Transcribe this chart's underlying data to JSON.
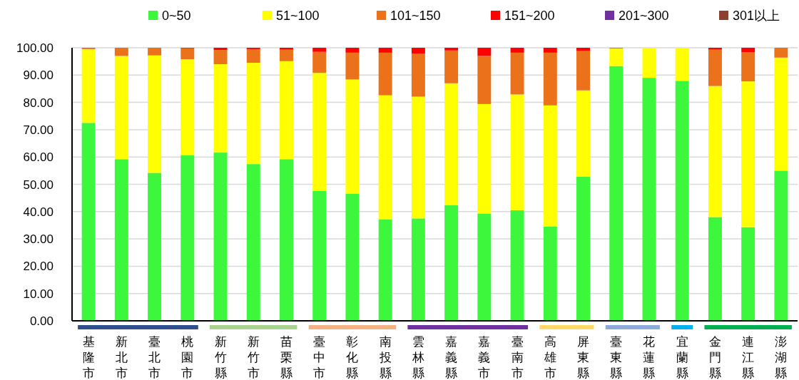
{
  "chart_data": {
    "type": "bar",
    "stacked": true,
    "categories": [
      "基隆市",
      "新北市",
      "臺北市",
      "桃園市",
      "新竹縣",
      "新竹市",
      "苗栗縣",
      "臺中市",
      "彰化縣",
      "南投縣",
      "雲林縣",
      "嘉義縣",
      "嘉義市",
      "臺南市",
      "高雄市",
      "屏東縣",
      "臺東縣",
      "花蓮縣",
      "宜蘭縣",
      "金門縣",
      "連江縣",
      "澎湖縣"
    ],
    "series": [
      {
        "name": "0~50",
        "color": "#3df73d",
        "values": [
          72.5,
          59.2,
          54.2,
          60.7,
          61.6,
          57.4,
          59.2,
          47.6,
          46.6,
          37.2,
          37.5,
          42.4,
          39.3,
          40.5,
          34.5,
          52.8,
          93.3,
          89.0,
          87.9,
          38.0,
          34.3,
          55.0
        ]
      },
      {
        "name": "51~100",
        "color": "#ffff00",
        "values": [
          27.0,
          37.8,
          43.0,
          35.1,
          32.4,
          37.1,
          35.9,
          43.2,
          41.8,
          45.4,
          44.6,
          44.6,
          40.1,
          42.4,
          44.4,
          31.6,
          6.4,
          11.0,
          12.1,
          48.0,
          53.4,
          41.4
        ]
      },
      {
        "name": "101~150",
        "color": "#eb711b",
        "values": [
          0.5,
          3.0,
          2.8,
          4.0,
          5.2,
          5.0,
          4.2,
          7.7,
          9.8,
          15.6,
          15.7,
          12.0,
          17.6,
          15.3,
          19.3,
          14.4,
          0.3,
          0,
          0,
          13.3,
          10.7,
          3.6
        ]
      },
      {
        "name": "151~200",
        "color": "#ff0000",
        "values": [
          0,
          0,
          0,
          0.2,
          0.8,
          0.5,
          0.7,
          1.5,
          1.8,
          1.8,
          2.2,
          1.0,
          3.0,
          1.8,
          1.8,
          1.2,
          0,
          0,
          0,
          0.7,
          1.6,
          0
        ]
      },
      {
        "name": "201~300",
        "color": "#7030a0",
        "values": [
          0,
          0,
          0,
          0,
          0,
          0,
          0,
          0,
          0,
          0,
          0,
          0,
          0,
          0,
          0,
          0,
          0,
          0,
          0,
          0,
          0,
          0
        ]
      },
      {
        "name": "301以上",
        "color": "#8b4030",
        "values": [
          0,
          0,
          0,
          0,
          0,
          0,
          0,
          0,
          0,
          0,
          0,
          0,
          0,
          0,
          0,
          0,
          0,
          0,
          0,
          0,
          0,
          0
        ]
      }
    ],
    "ylim": [
      0,
      100
    ],
    "yticks": [
      {
        "value": 0,
        "label": "0.00"
      },
      {
        "value": 10,
        "label": "10.00"
      },
      {
        "value": 20,
        "label": "20.00"
      },
      {
        "value": 30,
        "label": "30.00"
      },
      {
        "value": 40,
        "label": "40.00"
      },
      {
        "value": 50,
        "label": "50.00"
      },
      {
        "value": 60,
        "label": "60.00"
      },
      {
        "value": 70,
        "label": "70.00"
      },
      {
        "value": 80,
        "label": "80.00"
      },
      {
        "value": 90,
        "label": "90.00"
      },
      {
        "value": 100,
        "label": "100.00"
      }
    ],
    "grid": "y",
    "legend": "top"
  }
}
